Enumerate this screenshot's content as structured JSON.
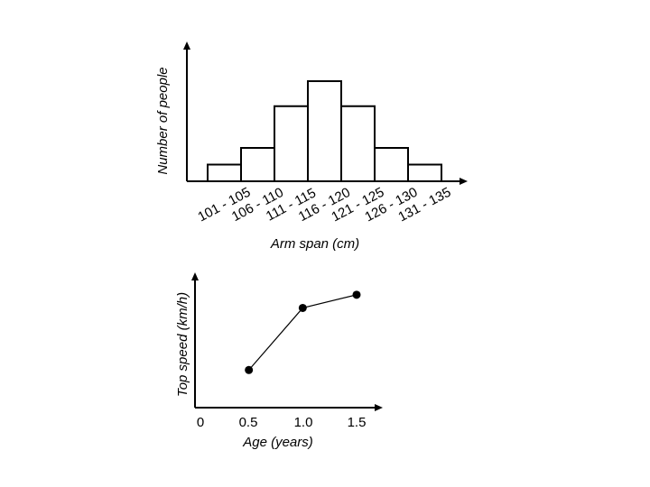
{
  "chart_data": [
    {
      "type": "bar",
      "title": "",
      "xlabel": "Arm span (cm)",
      "ylabel": "Number of people",
      "categories": [
        "101 - 105",
        "106 - 110",
        "111 - 115",
        "116 - 120",
        "121 - 125",
        "126 - 130",
        "131 - 135"
      ],
      "values": [
        2,
        4,
        9,
        12,
        9,
        4,
        2
      ],
      "y_tick_labels_shown": false,
      "bar_fill": "#ffffff",
      "bar_stroke": "#000000",
      "grid": false,
      "legend": "none"
    },
    {
      "type": "line",
      "title": "",
      "xlabel": "Age (years)",
      "ylabel": "Top speed (km/h)",
      "x_ticks": [
        "0",
        "0.5",
        "1.0",
        "1.5"
      ],
      "x": [
        0.5,
        1.0,
        1.5
      ],
      "y": [
        2,
        5.3,
        6
      ],
      "xlim": [
        0,
        1.5
      ],
      "ylim": [
        0,
        7
      ],
      "y_tick_labels_shown": false,
      "marker": "circle",
      "line_color": "#000000",
      "grid": false,
      "legend": "none"
    }
  ]
}
